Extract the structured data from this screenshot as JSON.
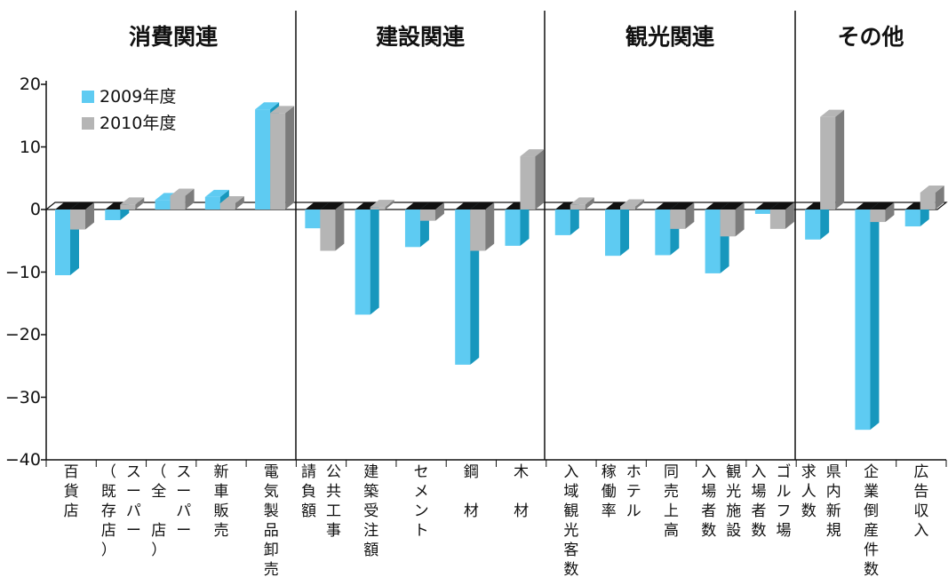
{
  "colors": {
    "s2009_front": "#5ecbf2",
    "s2009_side": "#1797bd",
    "s2010_front": "#b5b5b5",
    "s2010_side": "#7c7c7c",
    "zero_plane": "#111111"
  },
  "legend": [
    {
      "label": "2009年度",
      "color": "#5ecbf2"
    },
    {
      "label": "2010年度",
      "color": "#b5b5b5"
    }
  ],
  "groups": [
    "消費関連",
    "建設関連",
    "観光関連",
    "その他"
  ],
  "chart_data": {
    "type": "bar",
    "ylim": [
      -40,
      20
    ],
    "yticks": [
      "20",
      "10",
      "0",
      "-10",
      "-20",
      "-30",
      "-40"
    ],
    "grid": false,
    "legend_position": "top-left",
    "categories": [
      "百貨店",
      "スーパー（既存店）",
      "スーパー（全店）",
      "新車販売",
      "電気製品卸売",
      "公共工事請負額",
      "建築受注額",
      "セメント",
      "鋼材",
      "木材",
      "入域観光客数",
      "ホテル稼働率",
      "同売上高",
      "観光施設入場者数",
      "ゴルフ場入場者数",
      "県内新規求人数",
      "企業倒産件数",
      "広告収入"
    ],
    "category_columns": [
      [
        [
          "百",
          "貨",
          "店"
        ]
      ],
      [
        [
          "ス",
          "ー",
          "パ",
          "ー"
        ],
        [
          "（",
          "既",
          "存",
          "店",
          "）"
        ]
      ],
      [
        [
          "ス",
          "ー",
          "パ",
          "ー"
        ],
        [
          "（",
          "全",
          "",
          "店",
          "）"
        ]
      ],
      [
        [
          "新",
          "車",
          "販",
          "売"
        ]
      ],
      [
        [
          "電",
          "気",
          "製",
          "品",
          "卸",
          "売"
        ]
      ],
      [
        [
          "公",
          "共",
          "工",
          "事"
        ],
        [
          "請",
          "負",
          "額"
        ]
      ],
      [
        [
          "建",
          "築",
          "受",
          "注",
          "額"
        ]
      ],
      [
        [
          "セ",
          "メ",
          "ン",
          "ト"
        ]
      ],
      [
        [
          "鋼",
          "",
          "材"
        ]
      ],
      [
        [
          "木",
          "",
          "材"
        ]
      ],
      [
        [
          "入",
          "域",
          "観",
          "光",
          "客",
          "数"
        ]
      ],
      [
        [
          "ホ",
          "テ",
          "ル"
        ],
        [
          "稼",
          "働",
          "率"
        ]
      ],
      [
        [
          "同",
          "売",
          "上",
          "高"
        ]
      ],
      [
        [
          "観",
          "光",
          "施",
          "設"
        ],
        [
          "入",
          "場",
          "者",
          "数"
        ]
      ],
      [
        [
          "ゴ",
          "ル",
          "フ",
          "場"
        ],
        [
          "入",
          "場",
          "者",
          "数"
        ]
      ],
      [
        [
          "県",
          "内",
          "新",
          "規"
        ],
        [
          "求",
          "人",
          "数"
        ]
      ],
      [
        [
          "企",
          "業",
          "倒",
          "産",
          "件",
          "数"
        ]
      ],
      [
        [
          "広",
          "告",
          "収",
          "入"
        ]
      ]
    ],
    "series": [
      {
        "name": "2009年度",
        "values": [
          -10.5,
          -1.7,
          1.5,
          2.0,
          16.0,
          -3.0,
          -16.8,
          -6.0,
          -24.8,
          -5.8,
          -4.1,
          -7.4,
          -7.3,
          -10.2,
          -0.7,
          -4.8,
          -35.2,
          -2.7
        ]
      },
      {
        "name": "2010年度",
        "values": [
          -3.2,
          0.8,
          2.2,
          1.0,
          15.4,
          -6.6,
          0.4,
          -1.8,
          -6.6,
          8.5,
          0.8,
          0.5,
          -3.1,
          -4.3,
          -3.1,
          14.8,
          -2.0,
          2.7
        ]
      }
    ]
  }
}
